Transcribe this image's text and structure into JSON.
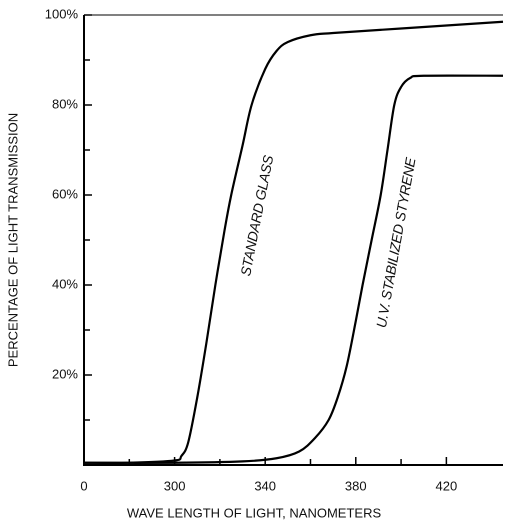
{
  "chart_data": {
    "type": "line",
    "xlabel": "WAVE LENGTH OF LIGHT, NANOMETERS",
    "ylabel": "PERCENTAGE OF LIGHT TRANSMISSION",
    "xlim": [
      260,
      445
    ],
    "xticks": [
      {
        "value": 260,
        "label": "0"
      },
      300,
      340,
      380,
      420
    ],
    "xticks_minor": [
      280,
      320,
      360,
      400
    ],
    "ylim": [
      0,
      100
    ],
    "yticks": [
      {
        "value": 20,
        "label": "20%"
      },
      {
        "value": 40,
        "label": "40%"
      },
      {
        "value": 60,
        "label": "60%"
      },
      {
        "value": 80,
        "label": "80%"
      },
      {
        "value": 100,
        "label": "100%"
      }
    ],
    "yticks_minor": [
      10,
      30,
      50,
      70,
      90
    ],
    "annotations": [
      "STANDARD GLASS",
      "U.V. STABILIZED STYRENE"
    ],
    "series": [
      {
        "color": "#000000",
        "x": [
          260,
          280,
          300,
          303,
          306,
          310,
          314,
          318,
          322,
          325,
          330,
          334,
          340,
          345,
          350,
          360,
          370,
          400,
          445
        ],
        "values": [
          0.5,
          0.5,
          1,
          2,
          5,
          15,
          27,
          40,
          52,
          60,
          71,
          80,
          88,
          92,
          94,
          95.5,
          96,
          97,
          98.5
        ]
      },
      {
        "color": "#000000",
        "x": [
          260,
          300,
          330,
          345,
          355,
          362,
          368,
          372,
          376,
          380,
          383,
          387,
          391,
          394,
          397,
          400,
          404,
          410,
          445
        ],
        "values": [
          0.5,
          0.5,
          0.8,
          1.5,
          3,
          6,
          10,
          15,
          22,
          32,
          40,
          50,
          60,
          70,
          80,
          84,
          86,
          86.5,
          86.5
        ]
      }
    ]
  }
}
